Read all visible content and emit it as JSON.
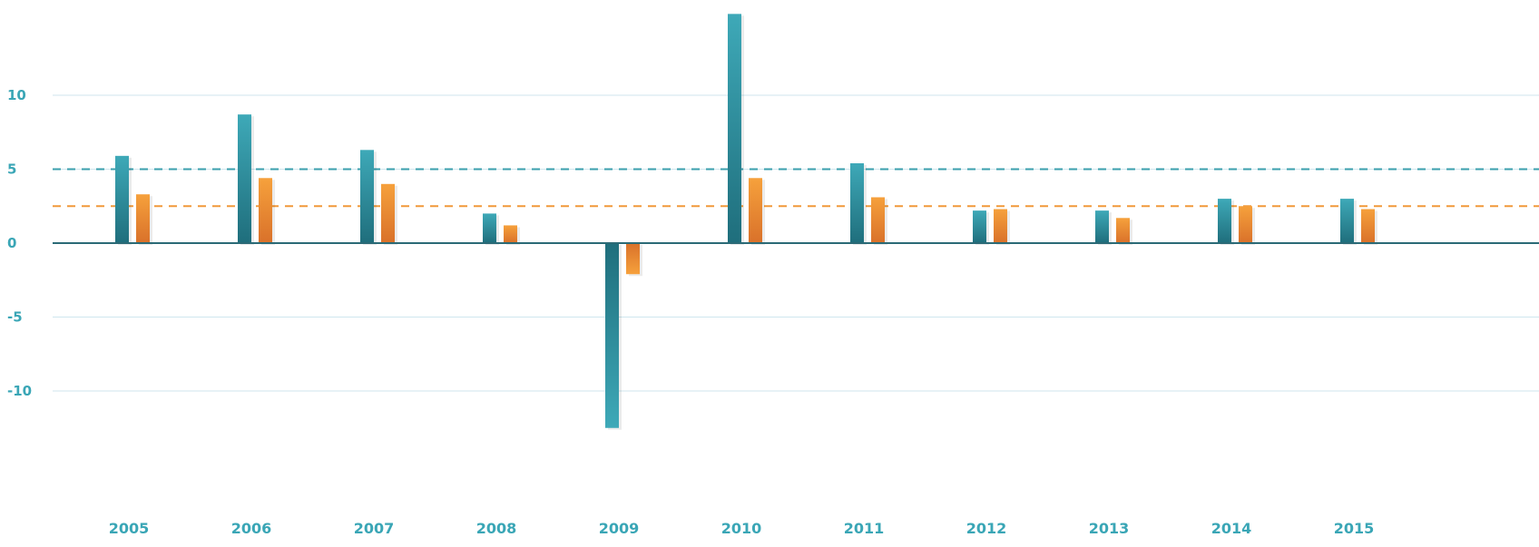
{
  "chart_data": {
    "type": "bar",
    "categories": [
      "2005",
      "2006",
      "2007",
      "2008",
      "2009",
      "2010",
      "2011",
      "2012",
      "2013",
      "2014",
      "2015"
    ],
    "series": [
      {
        "values": [
          5.9,
          8.7,
          6.3,
          2.0,
          -12.5,
          15.5,
          5.4,
          2.2,
          2.2,
          3.0,
          3.0
        ]
      },
      {
        "values": [
          3.3,
          4.4,
          4.0,
          1.2,
          -2.1,
          4.4,
          3.1,
          2.3,
          1.7,
          2.5,
          2.3
        ]
      }
    ],
    "reference_lines": [
      {
        "series_index": 0,
        "value": 5
      },
      {
        "series_index": 1,
        "value": 2.5
      }
    ],
    "yticks": [
      "10",
      "5",
      "0",
      "-5",
      "-10"
    ],
    "ylim": [
      -15,
      16
    ],
    "colors": [
      "#3a9fad",
      "#f1993a"
    ],
    "grid": true,
    "title": "",
    "xlabel": "",
    "ylabel": ""
  }
}
